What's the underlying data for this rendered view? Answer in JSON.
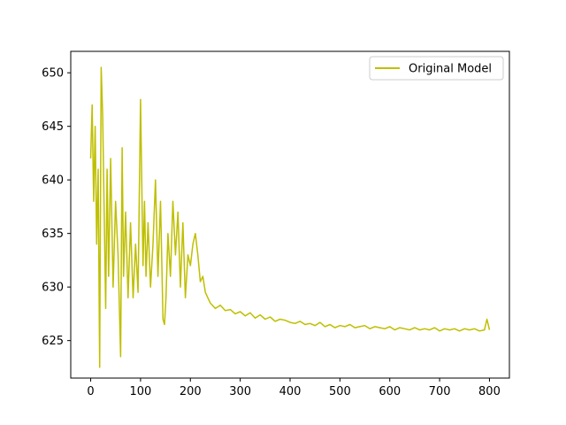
{
  "chart_data": {
    "type": "line",
    "title": "",
    "xlabel": "",
    "ylabel": "",
    "xlim": [
      -40,
      840
    ],
    "ylim": [
      621.5,
      652
    ],
    "xticks": [
      0,
      100,
      200,
      300,
      400,
      500,
      600,
      700,
      800
    ],
    "yticks": [
      625,
      630,
      635,
      640,
      645,
      650
    ],
    "legend": {
      "position": "top-right",
      "entries": [
        "Original Model"
      ]
    },
    "grid": false,
    "series": [
      {
        "name": "Original Model",
        "color": "#bfbf00",
        "x": [
          0,
          3,
          6,
          9,
          12,
          15,
          18,
          21,
          24,
          27,
          30,
          33,
          36,
          40,
          45,
          50,
          55,
          60,
          63,
          66,
          70,
          75,
          80,
          85,
          90,
          95,
          100,
          105,
          108,
          111,
          115,
          120,
          125,
          130,
          135,
          140,
          145,
          148,
          151,
          155,
          160,
          165,
          170,
          175,
          180,
          185,
          190,
          195,
          200,
          205,
          210,
          215,
          220,
          225,
          230,
          235,
          240,
          250,
          260,
          270,
          280,
          290,
          300,
          310,
          320,
          330,
          340,
          350,
          360,
          370,
          380,
          390,
          400,
          410,
          420,
          430,
          440,
          450,
          460,
          470,
          480,
          490,
          500,
          510,
          520,
          530,
          540,
          550,
          560,
          570,
          580,
          590,
          600,
          610,
          620,
          630,
          640,
          650,
          660,
          670,
          680,
          690,
          700,
          710,
          720,
          730,
          740,
          750,
          760,
          770,
          780,
          790,
          795,
          800
        ],
        "values": [
          642,
          647,
          638,
          645,
          634,
          641,
          622.5,
          650.5,
          646,
          637,
          628,
          641,
          631,
          642,
          630,
          638,
          633,
          623.5,
          643,
          631,
          637,
          629,
          636,
          629,
          634,
          629.5,
          647.5,
          632,
          638,
          631,
          636,
          630,
          634,
          640,
          631,
          638,
          627,
          626.5,
          629,
          635,
          631,
          638,
          633,
          637,
          630,
          636,
          629,
          633,
          632,
          634,
          635,
          633,
          630.5,
          631,
          629.5,
          629,
          628.5,
          628,
          628.3,
          627.8,
          627.9,
          627.5,
          627.7,
          627.3,
          627.6,
          627.1,
          627.4,
          627,
          627.2,
          626.8,
          627,
          626.9,
          626.7,
          626.6,
          626.8,
          626.5,
          626.6,
          626.4,
          626.7,
          626.3,
          626.5,
          626.2,
          626.4,
          626.3,
          626.5,
          626.2,
          626.3,
          626.4,
          626.1,
          626.3,
          626.2,
          626.1,
          626.3,
          626,
          626.2,
          626.1,
          626,
          626.2,
          626,
          626.1,
          626,
          626.2,
          625.9,
          626.1,
          626,
          626.1,
          625.9,
          626.1,
          626,
          626.1,
          625.9,
          626,
          627,
          626
        ]
      }
    ]
  }
}
